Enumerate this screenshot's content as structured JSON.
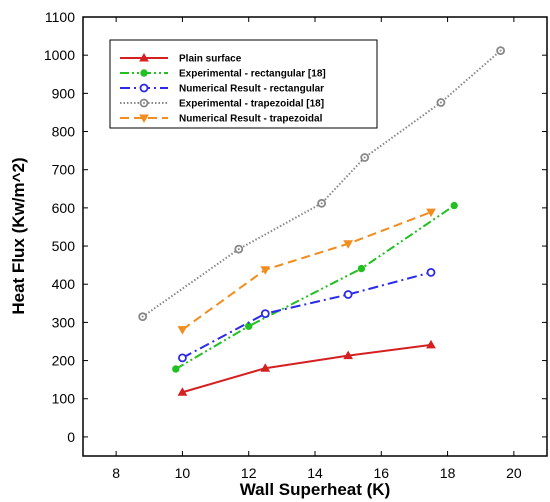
{
  "chart_data": {
    "type": "line",
    "title": "",
    "xlabel": "Wall Superheat (K)",
    "ylabel": "Heat Flux (Kw/m^2)",
    "xlim": [
      7,
      21
    ],
    "ylim": [
      -50,
      1100
    ],
    "xticks": [
      8,
      10,
      12,
      14,
      16,
      18,
      20
    ],
    "yticks": [
      0,
      100,
      200,
      300,
      400,
      500,
      600,
      700,
      800,
      900,
      1000,
      1100
    ],
    "grid": false,
    "legend_position": "top-left",
    "series": [
      {
        "name": "Plain surface",
        "color": "#d42020",
        "line_style": "solid",
        "marker": "triangle-up",
        "points": [
          [
            10,
            117
          ],
          [
            12.5,
            180
          ],
          [
            15,
            213
          ],
          [
            17.5,
            241
          ]
        ]
      },
      {
        "name": "Experimental - rectangular [18]",
        "color": "#22c022",
        "line_style": "dash-dot-dot",
        "marker": "circle",
        "points": [
          [
            9.8,
            178
          ],
          [
            12,
            290
          ],
          [
            15.4,
            441
          ],
          [
            18.2,
            606
          ]
        ]
      },
      {
        "name": "Numerical Result - rectangular",
        "color": "#2a2ae8",
        "line_style": "dash-dot",
        "marker": "circle-open",
        "points": [
          [
            10,
            207
          ],
          [
            12.5,
            323
          ],
          [
            15,
            373
          ],
          [
            17.5,
            431
          ]
        ]
      },
      {
        "name": "Experimental - trapezoidal [18]",
        "color": "#888888",
        "line_style": "dotted",
        "marker": "circle-open-dot",
        "points": [
          [
            8.8,
            315
          ],
          [
            11.7,
            492
          ],
          [
            14.2,
            612
          ],
          [
            15.5,
            732
          ],
          [
            17.8,
            876
          ],
          [
            19.6,
            1012
          ]
        ]
      },
      {
        "name": "Numerical Result - trapezoidal",
        "color": "#f28c1e",
        "line_style": "dashed",
        "marker": "triangle-down",
        "points": [
          [
            10,
            281
          ],
          [
            12.5,
            438
          ],
          [
            15,
            506
          ],
          [
            17.5,
            589
          ]
        ]
      }
    ]
  }
}
